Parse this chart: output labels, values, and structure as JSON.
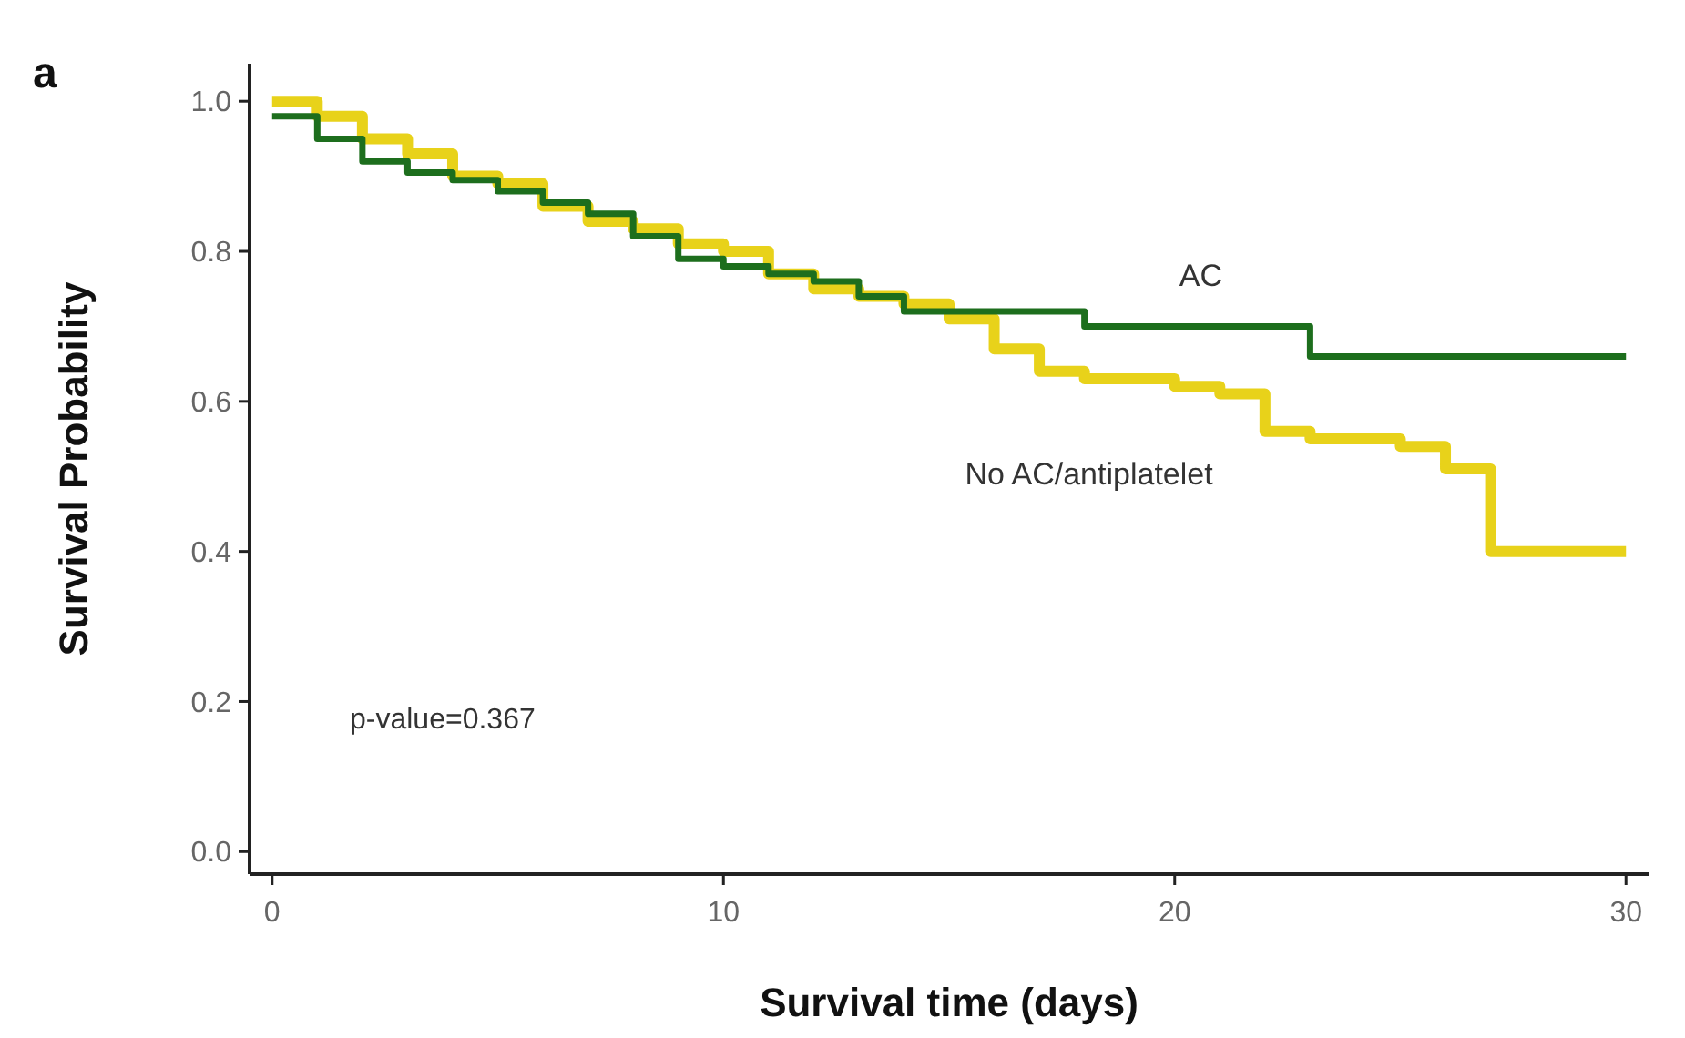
{
  "chart_data": {
    "type": "step",
    "xlabel": "Survival time (days)",
    "ylabel": "Survival Probability",
    "annotations": [
      "a",
      "p-value=0.367"
    ],
    "xlim": [
      -0.5,
      30.5
    ],
    "xticks": [
      0,
      10,
      20,
      30
    ],
    "ylim": [
      -0.03,
      1.05
    ],
    "yticks": [
      {
        "value": 0,
        "label": "0.0"
      },
      0.2,
      0.4,
      0.6,
      0.8,
      {
        "value": 1,
        "label": "1.0"
      }
    ],
    "grid": false,
    "line_style": "solid",
    "marker": "none",
    "series": [
      {
        "name": "AC",
        "color": "#1d6e1d",
        "x": [
          0,
          1,
          2,
          3,
          4,
          5,
          6,
          7,
          8,
          9,
          10,
          11,
          12,
          13,
          14,
          18,
          23,
          30
        ],
        "values": [
          0.98,
          0.95,
          0.92,
          0.905,
          0.895,
          0.88,
          0.865,
          0.85,
          0.82,
          0.79,
          0.78,
          0.77,
          0.76,
          0.74,
          0.72,
          0.7,
          0.66,
          0.66
        ]
      },
      {
        "name": "No AC/antiplatelet",
        "color": "#e8d21a",
        "x": [
          0,
          1,
          2,
          3,
          4,
          5,
          6,
          7,
          8,
          9,
          10,
          11,
          12,
          13,
          14,
          15,
          16,
          17,
          18,
          20,
          21,
          22,
          23,
          25,
          26,
          27,
          30
        ],
        "values": [
          1.0,
          0.98,
          0.95,
          0.93,
          0.9,
          0.89,
          0.86,
          0.84,
          0.83,
          0.81,
          0.8,
          0.77,
          0.75,
          0.74,
          0.73,
          0.71,
          0.67,
          0.64,
          0.63,
          0.62,
          0.61,
          0.56,
          0.55,
          0.54,
          0.51,
          0.4,
          0.4
        ]
      }
    ]
  }
}
